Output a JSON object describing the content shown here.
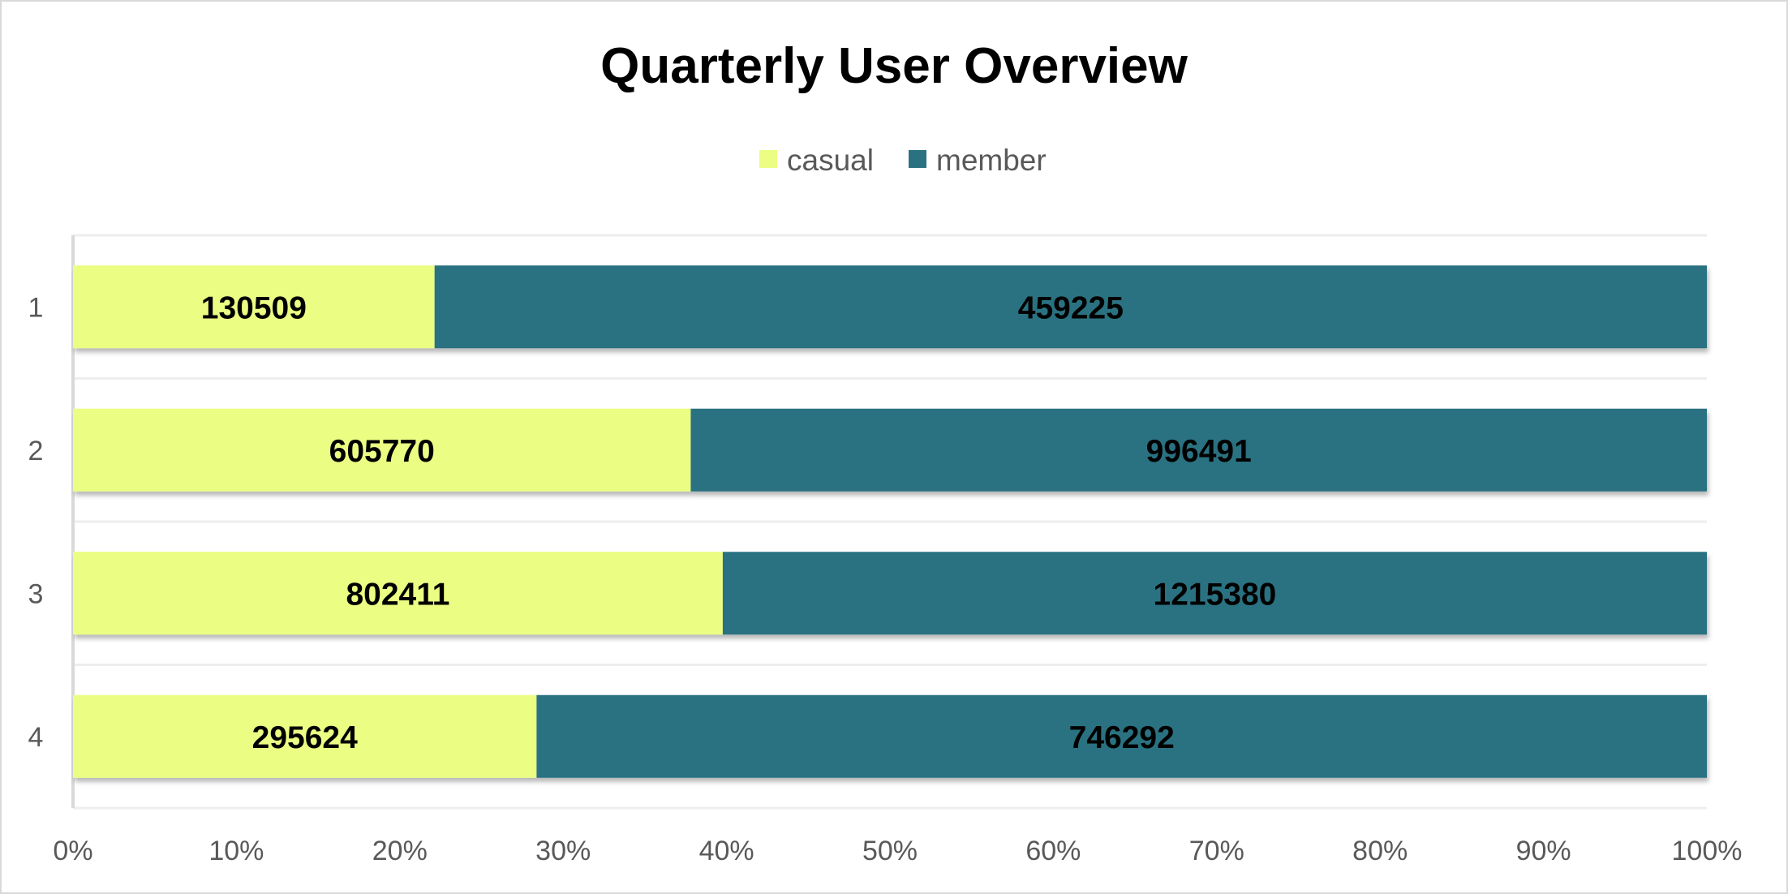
{
  "chart_data": {
    "type": "bar",
    "orientation": "horizontal",
    "stacked": "percent",
    "title": "Quarterly User Overview",
    "categories": [
      "1",
      "2",
      "3",
      "4"
    ],
    "series": [
      {
        "name": "casual",
        "values": [
          130509,
          605770,
          802411,
          295624
        ],
        "color": "#ebfd82"
      },
      {
        "name": "member",
        "values": [
          459225,
          996491,
          1215380,
          746292
        ],
        "color": "#2a7281"
      }
    ],
    "x_ticks": [
      "0%",
      "10%",
      "20%",
      "30%",
      "40%",
      "50%",
      "60%",
      "70%",
      "80%",
      "90%",
      "100%"
    ],
    "xlim": [
      0,
      100
    ],
    "legend_position": "top",
    "grid": true,
    "data_labels": true
  }
}
